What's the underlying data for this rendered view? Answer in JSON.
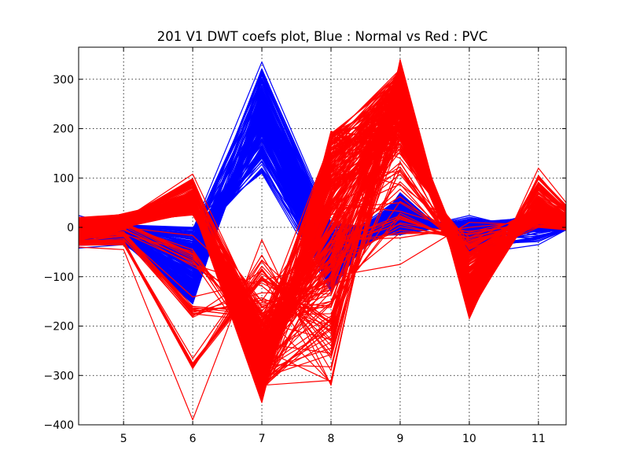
{
  "chart_data": {
    "type": "line",
    "title": "201 V1 DWT coefs plot, Blue : Normal vs Red : PVC",
    "xlabel": "",
    "ylabel": "",
    "xlim": [
      4.35,
      11.4
    ],
    "ylim": [
      -400,
      365
    ],
    "x_ticks": [
      5,
      6,
      7,
      8,
      9,
      10,
      11
    ],
    "x_tick_labels": [
      "5",
      "6",
      "7",
      "8",
      "9",
      "10",
      "11"
    ],
    "y_ticks": [
      300,
      200,
      100,
      0,
      -100,
      -200,
      -300,
      -400
    ],
    "y_tick_labels": [
      "300",
      "200",
      "100",
      "0",
      "−100",
      "−200",
      "−300",
      "−400"
    ],
    "grid": true,
    "legend": "none",
    "colors": {
      "normal": "#0000ff",
      "pvc": "#ff0000"
    },
    "x": [
      4.35,
      5,
      6,
      7,
      8,
      9,
      10,
      11,
      11.4
    ],
    "series": [
      {
        "class": "normal",
        "color": "#0000ff",
        "lines": [
          [
            24,
            0,
            -5,
            335,
            10,
            -8,
            24,
            -10,
            -5
          ],
          [
            -10,
            -20,
            -150,
            280,
            -40,
            60,
            -50,
            35,
            5
          ],
          [
            -20,
            -30,
            -155,
            265,
            -120,
            50,
            -40,
            25,
            0
          ],
          [
            0,
            5,
            0,
            110,
            -130,
            70,
            -55,
            -35,
            -5
          ],
          [
            -42,
            -35,
            -120,
            270,
            0,
            0,
            -5,
            30,
            10
          ],
          [
            -15,
            -10,
            -100,
            250,
            -90,
            10,
            5,
            0,
            -5
          ],
          [
            5,
            -5,
            -60,
            230,
            -20,
            -15,
            10,
            20,
            5
          ],
          [
            10,
            0,
            -20,
            200,
            -110,
            40,
            -30,
            15,
            0
          ],
          [
            -5,
            -15,
            -130,
            260,
            -60,
            30,
            -20,
            30,
            5
          ],
          [
            0,
            -25,
            -80,
            180,
            -100,
            55,
            -35,
            28,
            2
          ],
          [
            -10,
            -5,
            -30,
            120,
            -80,
            20,
            -10,
            10,
            0
          ],
          [
            3,
            -12,
            -140,
            240,
            -50,
            45,
            -25,
            22,
            4
          ]
        ]
      },
      {
        "class": "pvc",
        "color": "#ff0000",
        "lines": [
          [
            -5,
            25,
            55,
            -340,
            190,
            300,
            -170,
            50,
            20
          ],
          [
            10,
            15,
            108,
            -190,
            175,
            175,
            -80,
            35,
            10
          ],
          [
            -40,
            -45,
            -390,
            -25,
            -320,
            340,
            -185,
            120,
            50
          ],
          [
            0,
            10,
            40,
            -355,
            195,
            140,
            -30,
            40,
            10
          ],
          [
            5,
            28,
            60,
            -300,
            150,
            250,
            -150,
            45,
            25
          ],
          [
            -20,
            0,
            30,
            -150,
            -200,
            180,
            -60,
            0,
            -5
          ],
          [
            -10,
            20,
            70,
            -320,
            -310,
            310,
            -170,
            55,
            15
          ],
          [
            15,
            25,
            50,
            -280,
            100,
            290,
            -140,
            38,
            30
          ],
          [
            0,
            18,
            35,
            -260,
            -100,
            -75,
            10,
            5,
            0
          ],
          [
            -25,
            -5,
            65,
            -330,
            180,
            320,
            -175,
            60,
            10
          ],
          [
            8,
            22,
            45,
            -240,
            50,
            200,
            -110,
            30,
            12
          ],
          [
            -8,
            12,
            25,
            -200,
            -50,
            260,
            -90,
            42,
            20
          ],
          [
            20,
            26,
            58,
            -345,
            120,
            310,
            -160,
            52,
            28
          ],
          [
            -15,
            8,
            40,
            -270,
            0,
            230,
            -120,
            35,
            18
          ]
        ]
      }
    ]
  }
}
